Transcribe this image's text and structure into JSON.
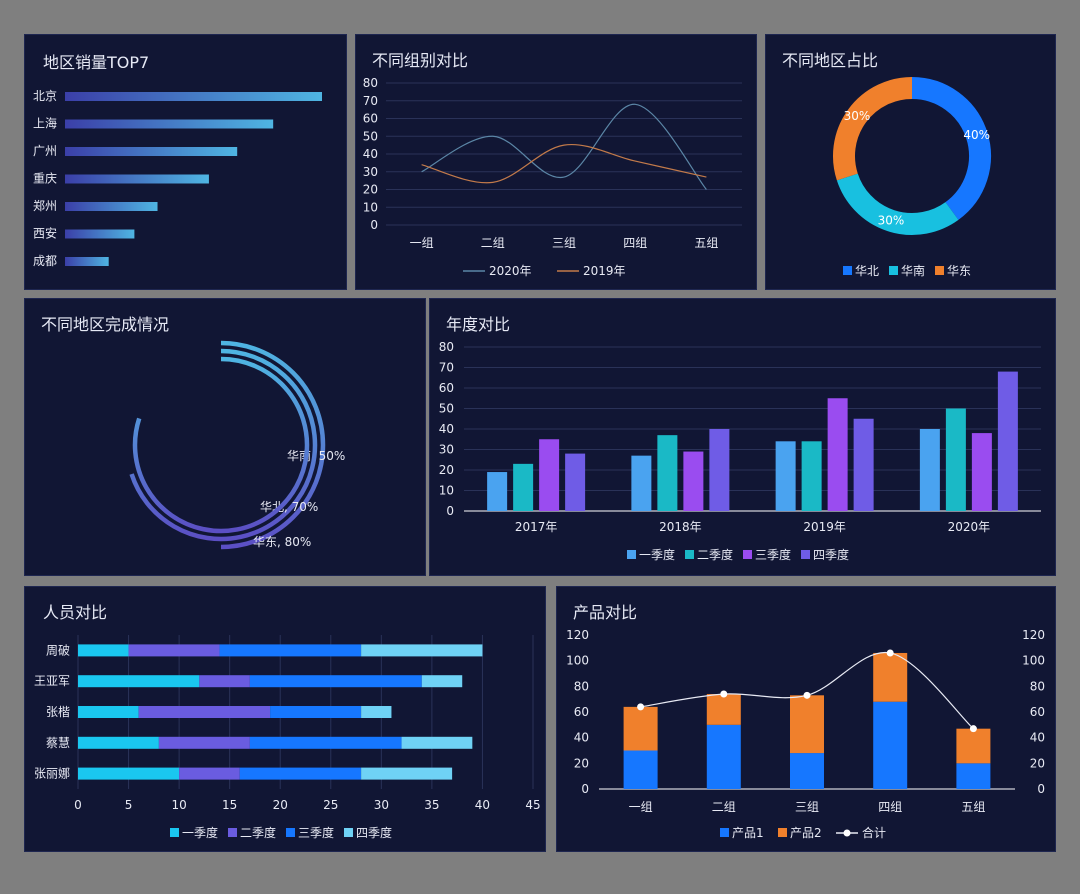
{
  "colors": {
    "bg": "#111634",
    "axis": "#e8eaf4",
    "grid": "#2a3258"
  },
  "chart_data": [
    {
      "id": "top7",
      "type": "bar",
      "orientation": "horizontal",
      "title": "地区销量TOP7",
      "categories": [
        "北京",
        "上海",
        "广州",
        "重庆",
        "郑州",
        "西安",
        "成都"
      ],
      "values": [
        100,
        81,
        67,
        56,
        36,
        27,
        17
      ]
    },
    {
      "id": "group",
      "type": "line",
      "title": "不同组别对比",
      "categories": [
        "一组",
        "二组",
        "三组",
        "四组",
        "五组"
      ],
      "ylim": [
        0,
        80
      ],
      "yticks": [
        0,
        10,
        20,
        30,
        40,
        50,
        60,
        70,
        80
      ],
      "series": [
        {
          "name": "2020年",
          "values": [
            30,
            50,
            27,
            68,
            20
          ],
          "color": "#5b86a6"
        },
        {
          "name": "2019年",
          "values": [
            34,
            24,
            45,
            36,
            27
          ],
          "color": "#c27a4a"
        }
      ]
    },
    {
      "id": "share",
      "type": "pie",
      "title": "不同地区占比",
      "labels": [
        "华北",
        "华南",
        "华东"
      ],
      "values": [
        40,
        30,
        30
      ],
      "display": [
        "40%",
        "30%",
        "30%"
      ],
      "colors": [
        "#1677ff",
        "#18c0e0",
        "#f0802c"
      ]
    },
    {
      "id": "completion",
      "type": "radial",
      "title": "不同地区完成情况",
      "labels": [
        "华南, 50%",
        "华北, 70%",
        "华东, 80%"
      ],
      "values": [
        50,
        70,
        80
      ]
    },
    {
      "id": "yearly",
      "type": "bar",
      "title": "年度对比",
      "categories": [
        "2017年",
        "2018年",
        "2019年",
        "2020年"
      ],
      "ylim": [
        0,
        80
      ],
      "yticks": [
        0,
        10,
        20,
        30,
        40,
        50,
        60,
        70,
        80
      ],
      "series": [
        {
          "name": "一季度",
          "values": [
            19,
            27,
            34,
            40
          ],
          "color": "#4aa3f0"
        },
        {
          "name": "二季度",
          "values": [
            23,
            37,
            34,
            50
          ],
          "color": "#1ab9c6"
        },
        {
          "name": "三季度",
          "values": [
            35,
            29,
            55,
            38
          ],
          "color": "#9a4cf0"
        },
        {
          "name": "四季度",
          "values": [
            28,
            40,
            45,
            68
          ],
          "color": "#6f5ce6"
        }
      ]
    },
    {
      "id": "staff",
      "type": "bar",
      "stacked": true,
      "orientation": "horizontal",
      "title": "人员对比",
      "categories": [
        "周破",
        "王亚军",
        "张楷",
        "蔡慧",
        "张丽娜"
      ],
      "xlim": [
        0,
        45
      ],
      "xticks": [
        0,
        5,
        10,
        15,
        20,
        25,
        30,
        35,
        40,
        45
      ],
      "series": [
        {
          "name": "一季度",
          "values": [
            5,
            12,
            6,
            8,
            10
          ],
          "color": "#1ac7f0"
        },
        {
          "name": "二季度",
          "values": [
            9,
            5,
            13,
            9,
            6
          ],
          "color": "#6a5ce0"
        },
        {
          "name": "三季度",
          "values": [
            14,
            17,
            9,
            15,
            12
          ],
          "color": "#1677ff"
        },
        {
          "name": "四季度",
          "values": [
            12,
            4,
            3,
            7,
            9
          ],
          "color": "#6fd2f5"
        }
      ]
    },
    {
      "id": "product",
      "type": "bar",
      "stacked": true,
      "title": "产品对比",
      "categories": [
        "一组",
        "二组",
        "三组",
        "四组",
        "五组"
      ],
      "ylim": [
        0,
        120
      ],
      "yticks": [
        0,
        20,
        40,
        60,
        80,
        100,
        120
      ],
      "series": [
        {
          "name": "产品1",
          "values": [
            30,
            50,
            28,
            68,
            20
          ],
          "color": "#1677ff"
        },
        {
          "name": "产品2",
          "values": [
            34,
            24,
            45,
            38,
            27
          ],
          "color": "#f0802c"
        }
      ],
      "line": {
        "name": "合计",
        "values": [
          64,
          74,
          73,
          106,
          47
        ],
        "color": "#e8eaf4"
      }
    }
  ]
}
